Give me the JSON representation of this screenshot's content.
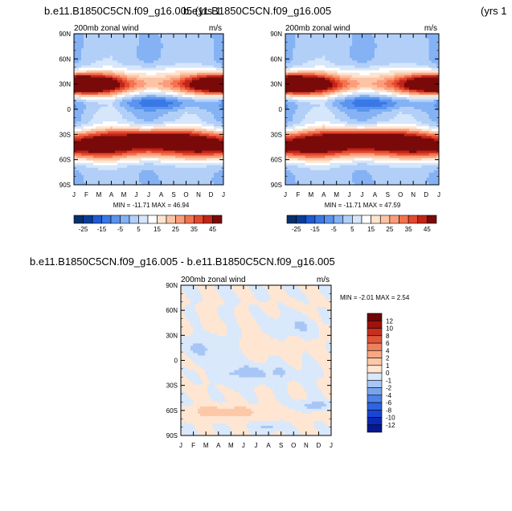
{
  "page": {
    "top_titles": [
      {
        "text": "b.e11.B1850C5CN.f09_g16.005 (yrs 1"
      },
      {
        "text": "b.e11.B1850C5CN.f09_g16.005"
      },
      {
        "text": "(yrs 1"
      }
    ],
    "bottom_title": "b.e11.B1850C5CN.f09_g16.005 - b.e11.B1850C5CN.f09_g16.005"
  },
  "chart_data": [
    {
      "type": "heatmap",
      "title": "200mb zonal wind",
      "units": "m/s",
      "x_ticks": [
        "J",
        "F",
        "M",
        "A",
        "M",
        "J",
        "J",
        "A",
        "S",
        "O",
        "N",
        "D",
        "J"
      ],
      "y_ticks": [
        "90N",
        "60N",
        "30N",
        "0",
        "30S",
        "60S",
        "90S"
      ],
      "xlim": [
        0,
        12
      ],
      "ylim": [
        -90,
        90
      ],
      "stats": "MIN = -11.71  MAX =  46.94",
      "colorbar": {
        "orientation": "horizontal",
        "levels": [
          -25,
          -20,
          -15,
          -10,
          -5,
          0,
          5,
          10,
          15,
          20,
          25,
          30,
          35,
          40,
          45
        ],
        "labels": [
          "-25",
          "-15",
          "-5",
          "5",
          "15",
          "25",
          "35",
          "45"
        ],
        "colors": [
          "#08306b",
          "#0a3d9a",
          "#1f5bd1",
          "#3a78e6",
          "#5a94ee",
          "#84b2f4",
          "#b2cff8",
          "#d6e6fb",
          "#ffffff",
          "#fde4cf",
          "#fcc4a5",
          "#fb9d7a",
          "#f4724e",
          "#e4492f",
          "#c12518",
          "#7a0a0a"
        ]
      },
      "field": {
        "base": [
          -4,
          2,
          7,
          9,
          4,
          0,
          -3,
          0,
          3,
          6,
          5,
          1
        ],
        "jets": [
          {
            "lat": 30,
            "width": 9,
            "lon_peak": 0.9,
            "peak": 44,
            "trough": 10,
            "lon_width": 2.2
          },
          {
            "lat": 30,
            "width": 9,
            "lon_peak": 11.7,
            "peak": 35,
            "trough": 10,
            "lon_width": 1.6
          },
          {
            "lat": 30,
            "width": 8,
            "lon_peak": 3.5,
            "peak": 4,
            "trough": 4,
            "lon_width": 1.4
          },
          {
            "lat": -33,
            "width": 8,
            "lon_peak": 6.4,
            "peak": 40,
            "trough": 17,
            "lon_width": 2.4
          },
          {
            "lat": -47,
            "width": 10,
            "lon_peak": 2.0,
            "peak": 26,
            "trough": 17,
            "lon_width": 3.0
          },
          {
            "lat": -45,
            "width": 10,
            "lon_peak": 10.5,
            "peak": 24,
            "trough": 14,
            "lon_width": 3.0
          },
          {
            "lat": 8,
            "width": 6,
            "lon_peak": 7.2,
            "peak": -14,
            "trough": -3,
            "lon_width": 2.5
          },
          {
            "lat": 45,
            "width": 6,
            "lon_peak": 6.5,
            "peak": 7,
            "trough": 0,
            "lon_width": 2.0
          }
        ]
      }
    },
    {
      "type": "heatmap",
      "title": "200mb zonal wind",
      "units": "m/s",
      "x_ticks": [
        "J",
        "F",
        "M",
        "A",
        "M",
        "J",
        "J",
        "A",
        "S",
        "O",
        "N",
        "D",
        "J"
      ],
      "y_ticks": [
        "90N",
        "60N",
        "30N",
        "0",
        "30S",
        "60S",
        "90S"
      ],
      "xlim": [
        0,
        12
      ],
      "ylim": [
        -90,
        90
      ],
      "stats": "MIN = -11.71  MAX =  47.59",
      "colorbar": {
        "orientation": "horizontal",
        "levels": [
          -25,
          -20,
          -15,
          -10,
          -5,
          0,
          5,
          10,
          15,
          20,
          25,
          30,
          35,
          40,
          45
        ],
        "labels": [
          "-25",
          "-15",
          "-5",
          "5",
          "15",
          "25",
          "35",
          "45"
        ],
        "colors": [
          "#08306b",
          "#0a3d9a",
          "#1f5bd1",
          "#3a78e6",
          "#5a94ee",
          "#84b2f4",
          "#b2cff8",
          "#d6e6fb",
          "#ffffff",
          "#fde4cf",
          "#fcc4a5",
          "#fb9d7a",
          "#f4724e",
          "#e4492f",
          "#c12518",
          "#7a0a0a"
        ]
      },
      "field": {
        "base": [
          -4,
          2,
          7,
          9,
          4,
          0,
          -3,
          0,
          3,
          6,
          5,
          1
        ],
        "jets": [
          {
            "lat": 30,
            "width": 9,
            "lon_peak": 0.9,
            "peak": 44,
            "trough": 10,
            "lon_width": 2.2
          },
          {
            "lat": 30,
            "width": 9,
            "lon_peak": 11.7,
            "peak": 35,
            "trough": 10,
            "lon_width": 1.6
          },
          {
            "lat": 30,
            "width": 8,
            "lon_peak": 3.5,
            "peak": 4,
            "trough": 4,
            "lon_width": 1.4
          },
          {
            "lat": -33,
            "width": 8,
            "lon_peak": 6.4,
            "peak": 41,
            "trough": 17,
            "lon_width": 2.4
          },
          {
            "lat": -47,
            "width": 10,
            "lon_peak": 2.0,
            "peak": 26,
            "trough": 17,
            "lon_width": 3.0
          },
          {
            "lat": -45,
            "width": 10,
            "lon_peak": 10.5,
            "peak": 24,
            "trough": 14,
            "lon_width": 3.0
          },
          {
            "lat": 8,
            "width": 6,
            "lon_peak": 7.2,
            "peak": -14,
            "trough": -3,
            "lon_width": 2.5
          },
          {
            "lat": 45,
            "width": 6,
            "lon_peak": 6.5,
            "peak": 7,
            "trough": 0,
            "lon_width": 2.0
          }
        ]
      }
    },
    {
      "type": "heatmap",
      "title": "200mb zonal wind",
      "units": "m/s",
      "x_ticks": [
        "J",
        "F",
        "M",
        "A",
        "M",
        "J",
        "J",
        "A",
        "S",
        "O",
        "N",
        "D",
        "J"
      ],
      "y_ticks": [
        "90N",
        "60N",
        "30N",
        "0",
        "30S",
        "60S",
        "90S"
      ],
      "xlim": [
        0,
        12
      ],
      "ylim": [
        -90,
        90
      ],
      "stats": "MIN =  -2.01  MAX =   2.54",
      "colorbar": {
        "orientation": "vertical",
        "levels": [
          -12,
          -10,
          -8,
          -6,
          -4,
          -2,
          -1,
          0,
          1,
          2,
          4,
          6,
          8,
          10,
          12
        ],
        "labels": [
          "-12",
          "-10",
          "-8",
          "-6",
          "-4",
          "-2",
          "-1",
          "0",
          "1",
          "2",
          "4",
          "6",
          "8",
          "10",
          "12"
        ],
        "colors": [
          "#08188f",
          "#0a2ab5",
          "#1a45d4",
          "#2f63e0",
          "#4e82e8",
          "#78a3ef",
          "#a8c6f5",
          "#d9e8fb",
          "#ffe6d2",
          "#fcc8a8",
          "#f9a783",
          "#f0805c",
          "#e0563a",
          "#c62f1f",
          "#a0120d",
          "#6e0606"
        ]
      },
      "field": {
        "base": [
          0.2,
          -0.1,
          0.3,
          0.1,
          -0.2,
          0.1,
          0.0,
          0.2,
          -0.1,
          0.3,
          0.0,
          0.1
        ],
        "jets": [
          {
            "lat": 15,
            "width": 10,
            "lon_peak": 2.0,
            "peak": -1.3,
            "trough": 0.3,
            "lon_width": 1.5
          },
          {
            "lat": 40,
            "width": 8,
            "lon_peak": 9.0,
            "peak": -1.2,
            "trough": 0.2,
            "lon_width": 1.5
          },
          {
            "lat": -15,
            "width": 8,
            "lon_peak": 6.0,
            "peak": -1.4,
            "trough": 0.1,
            "lon_width": 2.5
          },
          {
            "lat": -62,
            "width": 6,
            "lon_peak": 3.5,
            "peak": 1.6,
            "trough": 0.4,
            "lon_width": 2.0
          },
          {
            "lat": -55,
            "width": 5,
            "lon_peak": 10.5,
            "peak": -1.8,
            "trough": 0.0,
            "lon_width": 1.0
          },
          {
            "lat": -80,
            "width": 4,
            "lon_peak": 7.0,
            "peak": -1.5,
            "trough": 0.0,
            "lon_width": 0.6
          }
        ]
      }
    }
  ]
}
